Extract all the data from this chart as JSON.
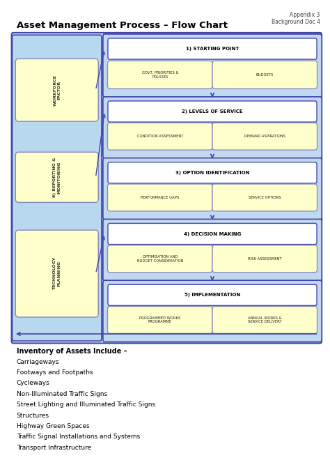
{
  "title": "Asset Management Process – Flow Chart",
  "header_right": "Appendix 3\nBackground Doc 4",
  "box_blue_border": "#4444aa",
  "box_blue_fill": "#cce0f5",
  "box_blue_fill2": "#b8d4ee",
  "box_yellow_fill": "#ffffcc",
  "box_yellow_border": "#aaaaaa",
  "box_white_fill": "#ffffff",
  "left_col_labels": [
    "WORKFORCE\nFACTOR",
    "6) REPORTING &\nMONITORING",
    "TECHNOLOGY\nPLANNING"
  ],
  "flow_titles": [
    "1) STARTING POINT",
    "2) LEVELS OF SERVICE",
    "3) OPTION IDENTIFICATION",
    "4) DECISION MAKING",
    "5) IMPLEMENTATION"
  ],
  "flow_sub_boxes": [
    [
      "GOVT, PRIORITIES &\nPOLICIES",
      "BUDGETS"
    ],
    [
      "CONDITION ASSESSMENT",
      "DEMAND ASPIRATIONS"
    ],
    [
      "PERFORMANCE GAPS",
      "SERVICE OPTIONS"
    ],
    [
      "OPTIMISATION AND\nBUDGET CONSIDERATION",
      "RISK ASSESSMENT"
    ],
    [
      "PROGRAMMED WORKS\nPROGRAMME",
      "ANNUAL WORKS &\nSERVICE DELIVERY"
    ]
  ],
  "inventory_title": "Inventory of Assets Include –",
  "inventory_items": [
    "Carriageways",
    "Footways and Footpaths",
    "Cycleways",
    "Non-Illuminated Traffic Signs",
    "Street Lighting and Illuminated Traffic Signs",
    "Structures",
    "Highway Green Spaces",
    "Traffic Signal Installations and Systems",
    "Transport Infrastructure"
  ]
}
